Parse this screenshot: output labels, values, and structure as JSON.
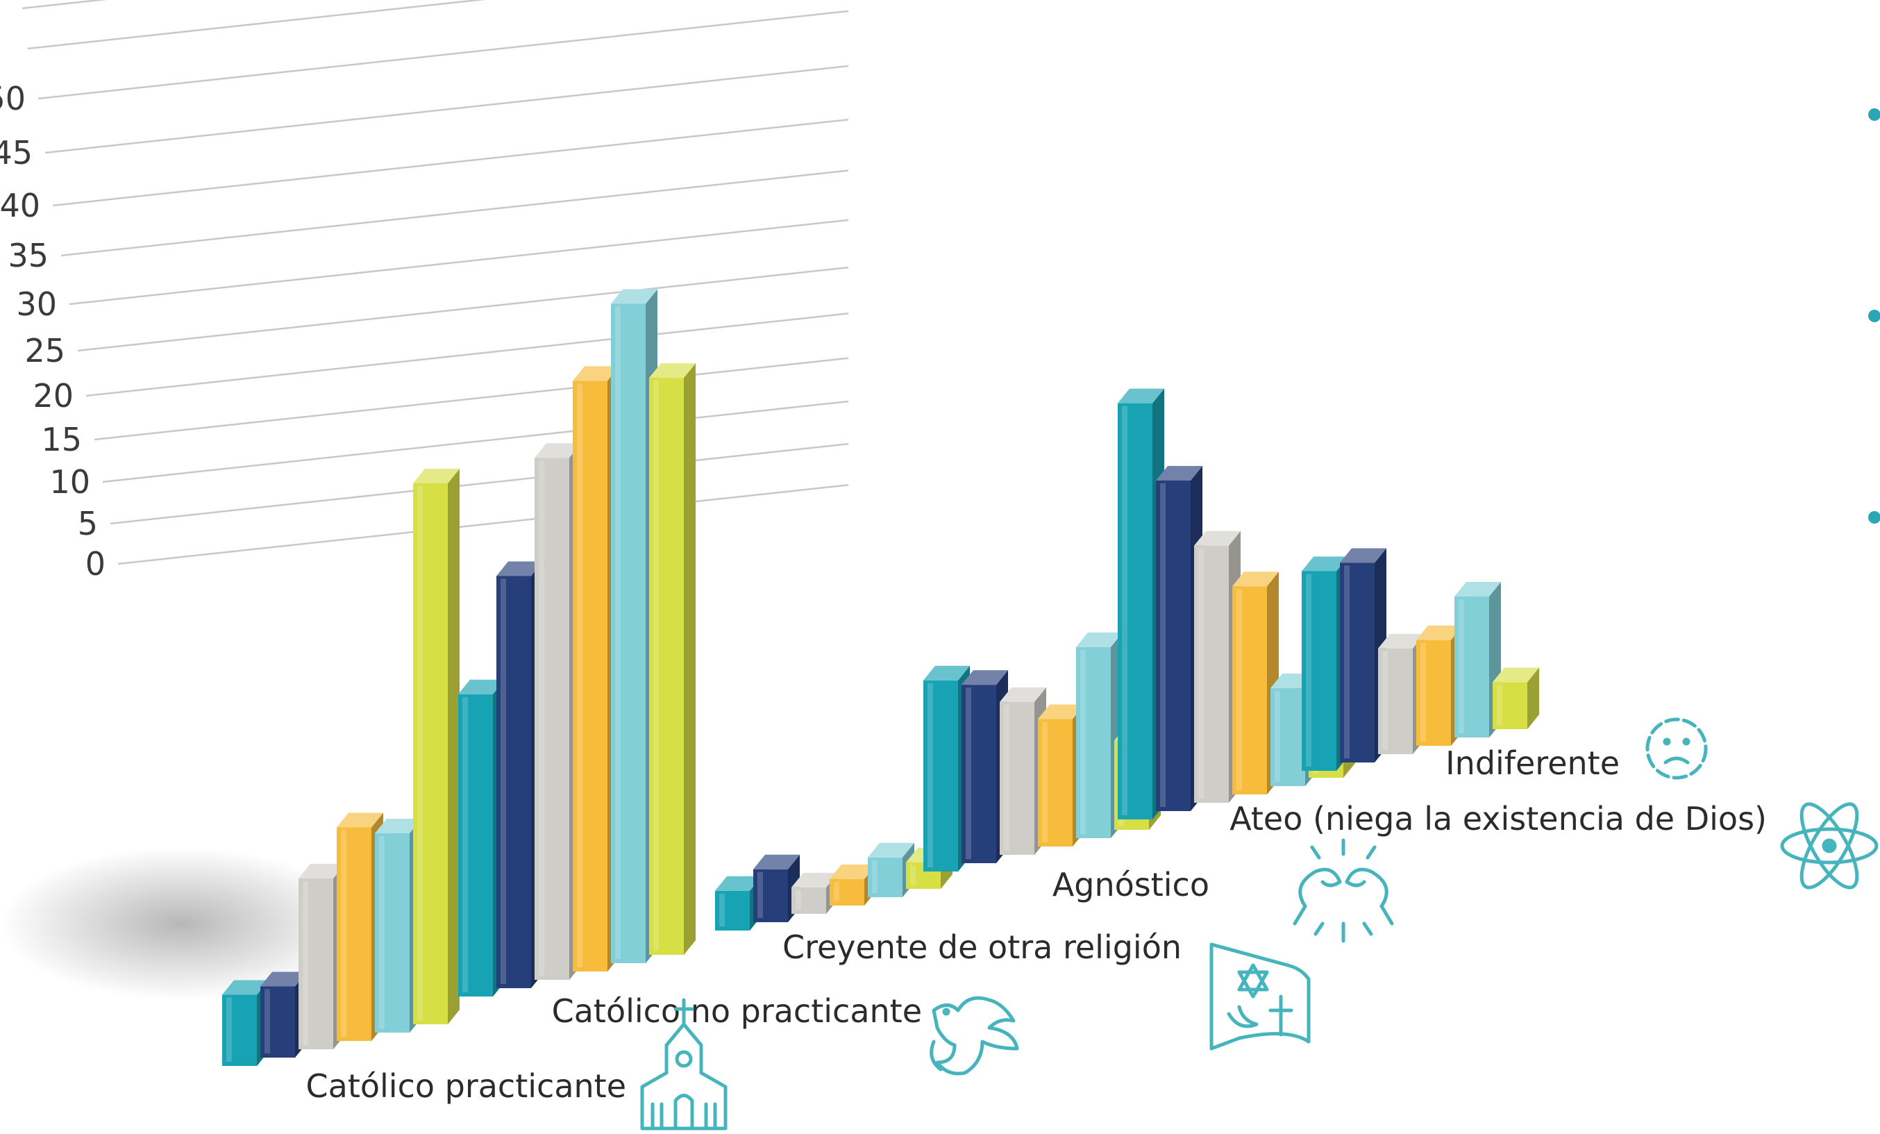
{
  "chart_data": {
    "type": "bar",
    "categories": [
      "Católico practicante",
      "Católico no practicante",
      "Creyente de otra religión",
      "Agnóstico",
      "Ateo (niega la existencia de Dios)",
      "Indiferente"
    ],
    "series": [
      {
        "values": [
          5,
          22,
          3,
          15,
          34,
          17
        ],
        "color": "#17a3b3"
      },
      {
        "values": [
          5,
          30,
          4,
          14,
          27,
          17
        ],
        "color": "#263f7a"
      },
      {
        "values": [
          12,
          38,
          2,
          12,
          21,
          9
        ],
        "color": "#cfcdc8"
      },
      {
        "values": [
          15,
          43,
          2,
          10,
          17,
          9
        ],
        "color": "#f8bc3c"
      },
      {
        "values": [
          14,
          48,
          3,
          15,
          8,
          12
        ],
        "color": "#82cfd8"
      },
      {
        "values": [
          38,
          42,
          2,
          7,
          5,
          4
        ],
        "color": "#d6e045"
      }
    ],
    "yticks": [
      "0",
      "5",
      "10",
      "15",
      "20",
      "25",
      "30",
      "35",
      "40",
      "45",
      "50"
    ],
    "ylim": [
      0,
      50
    ],
    "grid": true,
    "legend": "none",
    "icons": [
      "church-icon",
      "dove-icon",
      "religious-symbols-icon",
      "question-hands-icon",
      "atom-icon",
      "sad-face-icon"
    ]
  }
}
